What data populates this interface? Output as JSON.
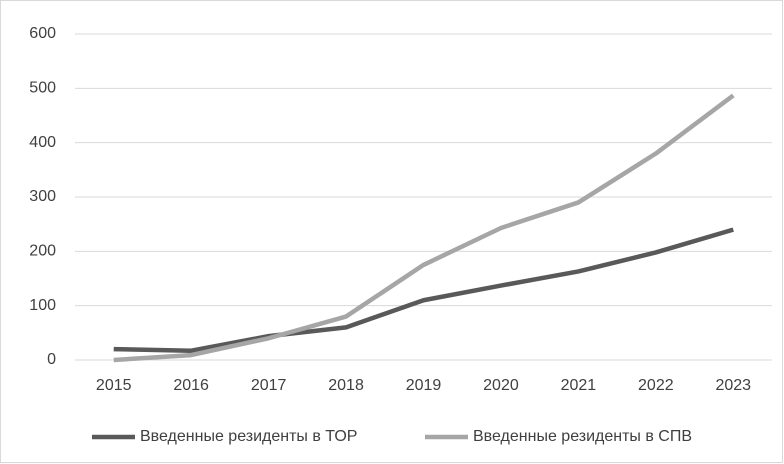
{
  "chart_data": {
    "type": "line",
    "categories": [
      "2015",
      "2016",
      "2017",
      "2018",
      "2019",
      "2020",
      "2021",
      "2022",
      "2023"
    ],
    "series": [
      {
        "name": "Введенные резиденты в ТОР",
        "color": "#595959",
        "values": [
          20,
          17,
          44,
          60,
          110,
          137,
          163,
          198,
          240
        ]
      },
      {
        "name": "Введенные резиденты в СПВ",
        "color": "#a6a6a6",
        "values": [
          0,
          9,
          40,
          80,
          175,
          243,
          290,
          380,
          487
        ]
      }
    ],
    "ylim": [
      0,
      600
    ],
    "yticks": [
      0,
      100,
      200,
      300,
      400,
      500,
      600
    ],
    "grid": true,
    "legend": "bottom"
  }
}
